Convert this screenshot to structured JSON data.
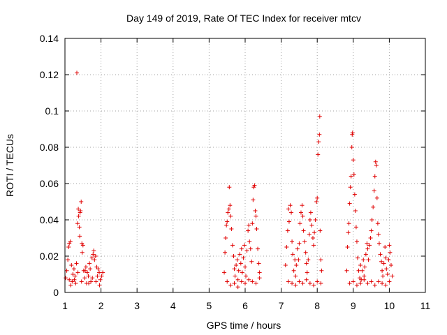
{
  "chart_data": {
    "type": "scatter",
    "title": "Day 149 of 2019, Rate Of TEC Index for receiver mtcv",
    "xlabel": "GPS time / hours",
    "ylabel": "ROTI / TECUs",
    "xlim": [
      1,
      11
    ],
    "ylim": [
      0,
      0.14
    ],
    "grid": true,
    "marker": "+",
    "color": "#e00000",
    "x_ticks": [
      "1",
      "2",
      "3",
      "4",
      "5",
      "6",
      "7",
      "8",
      "9",
      "10",
      "11"
    ],
    "y_ticks": [
      "0",
      "0.02",
      "0.04",
      "0.06",
      "0.08",
      "0.1",
      "0.12",
      "0.14"
    ],
    "series": [
      {
        "name": "ROTI",
        "points": [
          [
            1.02,
            0.008
          ],
          [
            1.05,
            0.012
          ],
          [
            1.08,
            0.018
          ],
          [
            1.1,
            0.025
          ],
          [
            1.12,
            0.027
          ],
          [
            1.15,
            0.028
          ],
          [
            1.18,
            0.015
          ],
          [
            1.2,
            0.006
          ],
          [
            1.22,
            0.01
          ],
          [
            1.25,
            0.013
          ],
          [
            1.28,
            0.009
          ],
          [
            1.3,
            0.005
          ],
          [
            1.32,
            0.016
          ],
          [
            1.35,
            0.038
          ],
          [
            1.33,
            0.121
          ],
          [
            1.37,
            0.046
          ],
          [
            1.38,
            0.042
          ],
          [
            1.4,
            0.036
          ],
          [
            1.41,
            0.031
          ],
          [
            1.42,
            0.044
          ],
          [
            1.43,
            0.045
          ],
          [
            1.45,
            0.05
          ],
          [
            1.47,
            0.027
          ],
          [
            1.48,
            0.022
          ],
          [
            1.5,
            0.026
          ],
          [
            1.52,
            0.012
          ],
          [
            1.55,
            0.008
          ],
          [
            1.58,
            0.014
          ],
          [
            1.6,
            0.005
          ],
          [
            1.62,
            0.011
          ],
          [
            1.65,
            0.009
          ],
          [
            1.68,
            0.016
          ],
          [
            1.7,
            0.013
          ],
          [
            1.72,
            0.006
          ],
          [
            1.75,
            0.019
          ],
          [
            1.78,
            0.021
          ],
          [
            1.8,
            0.023
          ],
          [
            1.82,
            0.018
          ],
          [
            1.85,
            0.02
          ],
          [
            1.88,
            0.014
          ],
          [
            1.9,
            0.009
          ],
          [
            1.92,
            0.013
          ],
          [
            1.95,
            0.011
          ],
          [
            1.98,
            0.007
          ],
          [
            2.02,
            0.009
          ],
          [
            2.05,
            0.011
          ],
          [
            1.12,
            0.007
          ],
          [
            1.16,
            0.004
          ],
          [
            1.26,
            0.007
          ],
          [
            1.36,
            0.011
          ],
          [
            1.46,
            0.006
          ],
          [
            1.56,
            0.012
          ],
          [
            1.66,
            0.005
          ],
          [
            1.76,
            0.008
          ],
          [
            1.86,
            0.006
          ],
          [
            1.96,
            0.004
          ],
          [
            5.42,
            0.011
          ],
          [
            5.44,
            0.022
          ],
          [
            5.46,
            0.03
          ],
          [
            5.48,
            0.037
          ],
          [
            5.5,
            0.039
          ],
          [
            5.52,
            0.044
          ],
          [
            5.55,
            0.046
          ],
          [
            5.56,
            0.058
          ],
          [
            5.58,
            0.048
          ],
          [
            5.6,
            0.042
          ],
          [
            5.62,
            0.035
          ],
          [
            5.65,
            0.026
          ],
          [
            5.68,
            0.02
          ],
          [
            5.7,
            0.013
          ],
          [
            5.72,
            0.009
          ],
          [
            5.75,
            0.015
          ],
          [
            5.78,
            0.018
          ],
          [
            5.8,
            0.007
          ],
          [
            5.82,
            0.012
          ],
          [
            5.85,
            0.021
          ],
          [
            5.88,
            0.016
          ],
          [
            5.9,
            0.024
          ],
          [
            5.92,
            0.011
          ],
          [
            5.95,
            0.019
          ],
          [
            5.98,
            0.026
          ],
          [
            6.0,
            0.014
          ],
          [
            6.02,
            0.009
          ],
          [
            6.05,
            0.023
          ],
          [
            6.08,
            0.034
          ],
          [
            6.1,
            0.037
          ],
          [
            6.12,
            0.028
          ],
          [
            6.15,
            0.024
          ],
          [
            6.18,
            0.017
          ],
          [
            6.2,
            0.038
          ],
          [
            6.22,
            0.051
          ],
          [
            6.24,
            0.058
          ],
          [
            6.26,
            0.059
          ],
          [
            6.28,
            0.045
          ],
          [
            6.3,
            0.042
          ],
          [
            6.32,
            0.035
          ],
          [
            6.35,
            0.024
          ],
          [
            6.38,
            0.016
          ],
          [
            6.4,
            0.011
          ],
          [
            5.5,
            0.006
          ],
          [
            5.6,
            0.004
          ],
          [
            5.7,
            0.005
          ],
          [
            5.8,
            0.003
          ],
          [
            5.9,
            0.006
          ],
          [
            6.0,
            0.005
          ],
          [
            6.1,
            0.007
          ],
          [
            6.2,
            0.006
          ],
          [
            6.3,
            0.005
          ],
          [
            6.4,
            0.008
          ],
          [
            7.12,
            0.015
          ],
          [
            7.15,
            0.025
          ],
          [
            7.18,
            0.034
          ],
          [
            7.2,
            0.046
          ],
          [
            7.22,
            0.039
          ],
          [
            7.25,
            0.048
          ],
          [
            7.28,
            0.044
          ],
          [
            7.3,
            0.028
          ],
          [
            7.32,
            0.021
          ],
          [
            7.35,
            0.012
          ],
          [
            7.38,
            0.018
          ],
          [
            7.4,
            0.009
          ],
          [
            7.42,
            0.015
          ],
          [
            7.45,
            0.024
          ],
          [
            7.48,
            0.018
          ],
          [
            7.5,
            0.027
          ],
          [
            7.52,
            0.038
          ],
          [
            7.55,
            0.044
          ],
          [
            7.58,
            0.048
          ],
          [
            7.6,
            0.042
          ],
          [
            7.62,
            0.034
          ],
          [
            7.65,
            0.028
          ],
          [
            7.68,
            0.022
          ],
          [
            7.7,
            0.016
          ],
          [
            7.72,
            0.011
          ],
          [
            7.75,
            0.018
          ],
          [
            7.78,
            0.032
          ],
          [
            7.8,
            0.04
          ],
          [
            7.82,
            0.044
          ],
          [
            7.85,
            0.037
          ],
          [
            7.88,
            0.03
          ],
          [
            7.9,
            0.026
          ],
          [
            7.92,
            0.033
          ],
          [
            7.95,
            0.04
          ],
          [
            7.98,
            0.05
          ],
          [
            8.0,
            0.052
          ],
          [
            8.02,
            0.076
          ],
          [
            8.04,
            0.083
          ],
          [
            8.06,
            0.087
          ],
          [
            8.07,
            0.097
          ],
          [
            8.08,
            0.034
          ],
          [
            8.1,
            0.018
          ],
          [
            8.12,
            0.012
          ],
          [
            7.2,
            0.006
          ],
          [
            7.3,
            0.005
          ],
          [
            7.4,
            0.004
          ],
          [
            7.5,
            0.006
          ],
          [
            7.6,
            0.005
          ],
          [
            7.7,
            0.007
          ],
          [
            7.8,
            0.005
          ],
          [
            7.9,
            0.004
          ],
          [
            8.0,
            0.006
          ],
          [
            8.1,
            0.005
          ],
          [
            8.82,
            0.012
          ],
          [
            8.84,
            0.025
          ],
          [
            8.86,
            0.033
          ],
          [
            8.88,
            0.038
          ],
          [
            8.9,
            0.049
          ],
          [
            8.92,
            0.058
          ],
          [
            8.94,
            0.064
          ],
          [
            8.96,
            0.08
          ],
          [
            8.97,
            0.087
          ],
          [
            8.98,
            0.088
          ],
          [
            9.0,
            0.073
          ],
          [
            9.02,
            0.065
          ],
          [
            9.04,
            0.054
          ],
          [
            9.06,
            0.045
          ],
          [
            9.08,
            0.036
          ],
          [
            9.1,
            0.028
          ],
          [
            9.12,
            0.019
          ],
          [
            9.15,
            0.012
          ],
          [
            9.18,
            0.008
          ],
          [
            9.2,
            0.015
          ],
          [
            9.22,
            0.007
          ],
          [
            9.25,
            0.012
          ],
          [
            9.28,
            0.018
          ],
          [
            9.3,
            0.009
          ],
          [
            9.32,
            0.014
          ],
          [
            9.35,
            0.021
          ],
          [
            9.38,
            0.027
          ],
          [
            9.4,
            0.024
          ],
          [
            9.42,
            0.018
          ],
          [
            9.45,
            0.026
          ],
          [
            9.48,
            0.03
          ],
          [
            9.5,
            0.034
          ],
          [
            9.52,
            0.04
          ],
          [
            9.55,
            0.047
          ],
          [
            9.58,
            0.056
          ],
          [
            9.6,
            0.064
          ],
          [
            9.62,
            0.072
          ],
          [
            9.64,
            0.07
          ],
          [
            9.66,
            0.052
          ],
          [
            9.68,
            0.038
          ],
          [
            9.7,
            0.032
          ],
          [
            9.72,
            0.027
          ],
          [
            9.75,
            0.021
          ],
          [
            9.78,
            0.017
          ],
          [
            9.8,
            0.012
          ],
          [
            9.82,
            0.009
          ],
          [
            9.85,
            0.016
          ],
          [
            9.88,
            0.025
          ],
          [
            9.9,
            0.019
          ],
          [
            9.92,
            0.013
          ],
          [
            9.95,
            0.01
          ],
          [
            9.98,
            0.018
          ],
          [
            10.0,
            0.026
          ],
          [
            10.02,
            0.022
          ],
          [
            10.05,
            0.015
          ],
          [
            10.08,
            0.009
          ],
          [
            8.9,
            0.005
          ],
          [
            9.0,
            0.006
          ],
          [
            9.1,
            0.004
          ],
          [
            9.2,
            0.005
          ],
          [
            9.3,
            0.007
          ],
          [
            9.4,
            0.005
          ],
          [
            9.5,
            0.006
          ],
          [
            9.6,
            0.004
          ],
          [
            9.7,
            0.006
          ],
          [
            9.8,
            0.005
          ],
          [
            9.9,
            0.004
          ],
          [
            10.0,
            0.006
          ]
        ]
      }
    ]
  }
}
